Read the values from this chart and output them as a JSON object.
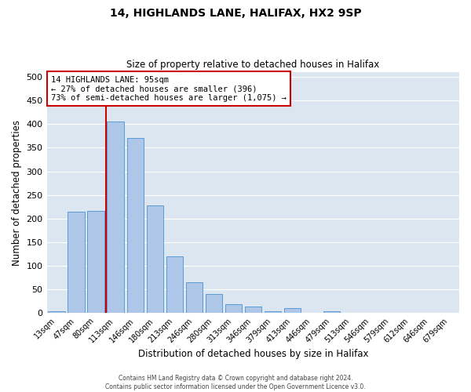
{
  "title1": "14, HIGHLANDS LANE, HALIFAX, HX2 9SP",
  "title2": "Size of property relative to detached houses in Halifax",
  "xlabel": "Distribution of detached houses by size in Halifax",
  "ylabel": "Number of detached properties",
  "bar_labels": [
    "13sqm",
    "47sqm",
    "80sqm",
    "113sqm",
    "146sqm",
    "180sqm",
    "213sqm",
    "246sqm",
    "280sqm",
    "313sqm",
    "346sqm",
    "379sqm",
    "413sqm",
    "446sqm",
    "479sqm",
    "513sqm",
    "546sqm",
    "579sqm",
    "612sqm",
    "646sqm",
    "679sqm"
  ],
  "bar_values": [
    3,
    215,
    216,
    405,
    370,
    228,
    120,
    65,
    40,
    18,
    14,
    3,
    10,
    1,
    3,
    1,
    0,
    0,
    1,
    0,
    1
  ],
  "bar_color": "#aec6e8",
  "bar_edge_color": "#5b9bd5",
  "bg_color": "#dce6f0",
  "grid_color": "#ffffff",
  "marker_color": "#cc0000",
  "annotation_title": "14 HIGHLANDS LANE: 95sqm",
  "annotation_line1": "← 27% of detached houses are smaller (396)",
  "annotation_line2": "73% of semi-detached houses are larger (1,075) →",
  "annotation_box_color": "#cc0000",
  "footer1": "Contains HM Land Registry data © Crown copyright and database right 2024.",
  "footer2": "Contains public sector information licensed under the Open Government Licence v3.0.",
  "ylim": [
    0,
    510
  ],
  "yticks": [
    0,
    50,
    100,
    150,
    200,
    250,
    300,
    350,
    400,
    450,
    500
  ]
}
